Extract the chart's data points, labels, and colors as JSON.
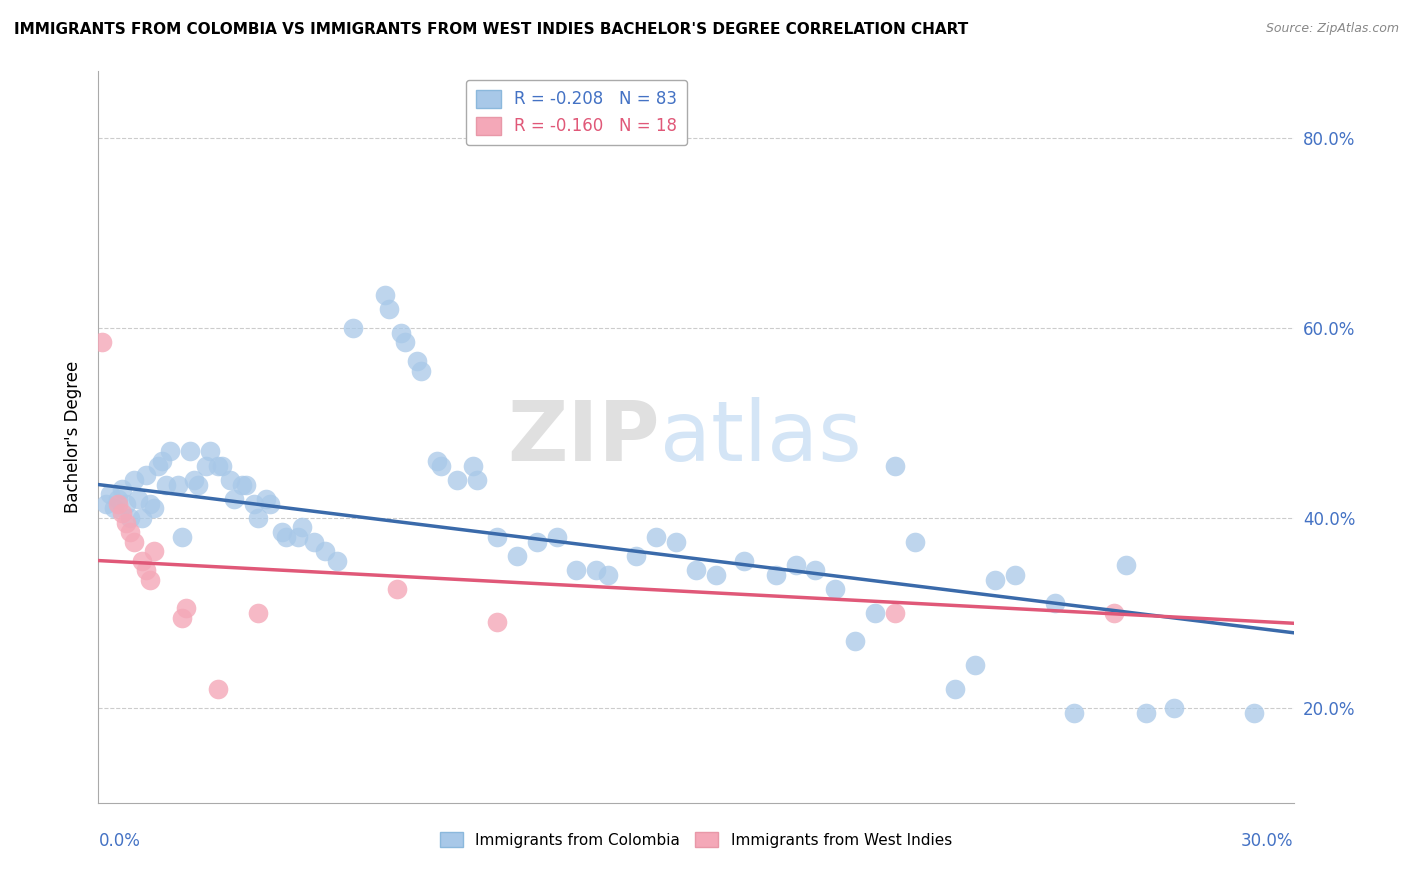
{
  "title": "IMMIGRANTS FROM COLOMBIA VS IMMIGRANTS FROM WEST INDIES BACHELOR'S DEGREE CORRELATION CHART",
  "source": "Source: ZipAtlas.com",
  "ylabel": "Bachelor's Degree",
  "xlim": [
    0.0,
    0.3
  ],
  "ylim": [
    0.1,
    0.87
  ],
  "colombia_R": "-0.208",
  "colombia_N": "83",
  "westindies_R": "-0.160",
  "westindies_N": "18",
  "colombia_color": "#A8C8E8",
  "westindies_color": "#F4A8B8",
  "colombia_line_color": "#3A6AAA",
  "westindies_line_color": "#E05878",
  "watermark": "ZIPatlas",
  "colombia_line_m": -0.52,
  "colombia_line_b": 0.435,
  "westindies_line_m": -0.22,
  "westindies_line_b": 0.355,
  "colombia_points": [
    [
      0.002,
      0.415
    ],
    [
      0.003,
      0.425
    ],
    [
      0.004,
      0.41
    ],
    [
      0.005,
      0.42
    ],
    [
      0.006,
      0.43
    ],
    [
      0.007,
      0.415
    ],
    [
      0.008,
      0.4
    ],
    [
      0.009,
      0.44
    ],
    [
      0.01,
      0.42
    ],
    [
      0.011,
      0.4
    ],
    [
      0.012,
      0.445
    ],
    [
      0.013,
      0.415
    ],
    [
      0.014,
      0.41
    ],
    [
      0.015,
      0.455
    ],
    [
      0.016,
      0.46
    ],
    [
      0.017,
      0.435
    ],
    [
      0.018,
      0.47
    ],
    [
      0.02,
      0.435
    ],
    [
      0.021,
      0.38
    ],
    [
      0.023,
      0.47
    ],
    [
      0.024,
      0.44
    ],
    [
      0.025,
      0.435
    ],
    [
      0.027,
      0.455
    ],
    [
      0.028,
      0.47
    ],
    [
      0.03,
      0.455
    ],
    [
      0.031,
      0.455
    ],
    [
      0.033,
      0.44
    ],
    [
      0.034,
      0.42
    ],
    [
      0.036,
      0.435
    ],
    [
      0.037,
      0.435
    ],
    [
      0.039,
      0.415
    ],
    [
      0.04,
      0.4
    ],
    [
      0.042,
      0.42
    ],
    [
      0.043,
      0.415
    ],
    [
      0.046,
      0.385
    ],
    [
      0.047,
      0.38
    ],
    [
      0.05,
      0.38
    ],
    [
      0.051,
      0.39
    ],
    [
      0.054,
      0.375
    ],
    [
      0.057,
      0.365
    ],
    [
      0.06,
      0.355
    ],
    [
      0.064,
      0.6
    ],
    [
      0.072,
      0.635
    ],
    [
      0.073,
      0.62
    ],
    [
      0.076,
      0.595
    ],
    [
      0.077,
      0.585
    ],
    [
      0.08,
      0.565
    ],
    [
      0.081,
      0.555
    ],
    [
      0.085,
      0.46
    ],
    [
      0.086,
      0.455
    ],
    [
      0.09,
      0.44
    ],
    [
      0.094,
      0.455
    ],
    [
      0.095,
      0.44
    ],
    [
      0.1,
      0.38
    ],
    [
      0.105,
      0.36
    ],
    [
      0.11,
      0.375
    ],
    [
      0.115,
      0.38
    ],
    [
      0.12,
      0.345
    ],
    [
      0.125,
      0.345
    ],
    [
      0.128,
      0.34
    ],
    [
      0.135,
      0.36
    ],
    [
      0.14,
      0.38
    ],
    [
      0.145,
      0.375
    ],
    [
      0.15,
      0.345
    ],
    [
      0.155,
      0.34
    ],
    [
      0.162,
      0.355
    ],
    [
      0.17,
      0.34
    ],
    [
      0.175,
      0.35
    ],
    [
      0.18,
      0.345
    ],
    [
      0.185,
      0.325
    ],
    [
      0.19,
      0.27
    ],
    [
      0.195,
      0.3
    ],
    [
      0.2,
      0.455
    ],
    [
      0.205,
      0.375
    ],
    [
      0.215,
      0.22
    ],
    [
      0.22,
      0.245
    ],
    [
      0.225,
      0.335
    ],
    [
      0.23,
      0.34
    ],
    [
      0.24,
      0.31
    ],
    [
      0.245,
      0.195
    ],
    [
      0.258,
      0.35
    ],
    [
      0.263,
      0.195
    ],
    [
      0.27,
      0.2
    ],
    [
      0.29,
      0.195
    ]
  ],
  "westindies_points": [
    [
      0.001,
      0.585
    ],
    [
      0.005,
      0.415
    ],
    [
      0.006,
      0.405
    ],
    [
      0.007,
      0.395
    ],
    [
      0.008,
      0.385
    ],
    [
      0.009,
      0.375
    ],
    [
      0.011,
      0.355
    ],
    [
      0.012,
      0.345
    ],
    [
      0.013,
      0.335
    ],
    [
      0.014,
      0.365
    ],
    [
      0.021,
      0.295
    ],
    [
      0.022,
      0.305
    ],
    [
      0.03,
      0.22
    ],
    [
      0.04,
      0.3
    ],
    [
      0.075,
      0.325
    ],
    [
      0.1,
      0.29
    ],
    [
      0.2,
      0.3
    ],
    [
      0.255,
      0.3
    ]
  ]
}
